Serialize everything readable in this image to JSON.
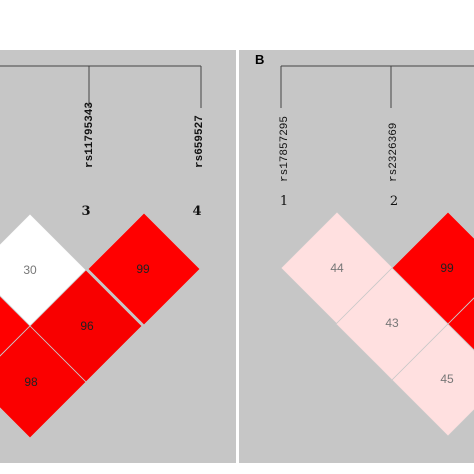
{
  "panels": [
    {
      "id": "A",
      "letter": "",
      "snps": [
        {
          "name": "rs11795343",
          "index": "3",
          "bold": true
        },
        {
          "name": "rs659527",
          "index": "4",
          "bold": true
        }
      ],
      "cells": [
        {
          "pos": "left-top",
          "value": "30",
          "level": 0.0
        },
        {
          "pos": "right-top",
          "value": "99",
          "level": 1.0
        },
        {
          "pos": "left-edge",
          "value": "",
          "level": 1.0
        },
        {
          "pos": "middle",
          "value": "96",
          "level": 0.97
        },
        {
          "pos": "left-bottom",
          "value": "98",
          "level": 0.98
        }
      ]
    },
    {
      "id": "B",
      "letter": "B",
      "snps": [
        {
          "name": "rs17857295",
          "index": "1",
          "bold": false
        },
        {
          "name": "rs2326369",
          "index": "2",
          "bold": false
        }
      ],
      "cells": [
        {
          "pos": "left-top",
          "value": "44",
          "level": 0.1
        },
        {
          "pos": "right-top",
          "value": "99",
          "level": 1.0
        },
        {
          "pos": "middle",
          "value": "43",
          "level": 0.1
        },
        {
          "pos": "bottom",
          "value": "45",
          "level": 0.1
        },
        {
          "pos": "right-edge",
          "value": "",
          "level": 1.0
        }
      ]
    }
  ],
  "colors": {
    "background": "#c6c6c6",
    "strong_ld": "#ff0000",
    "weak_ld": "#ffe0e0",
    "none_ld": "#ffffff"
  }
}
